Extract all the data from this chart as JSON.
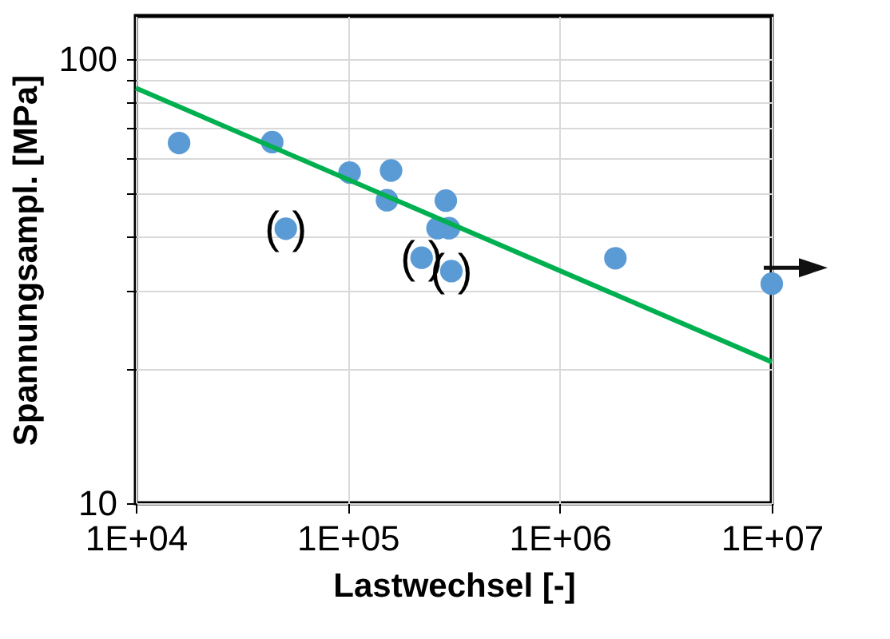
{
  "chart_data": {
    "type": "scatter",
    "xlabel": "Lastwechsel [-]",
    "ylabel": "Spannungsampl. [MPa]",
    "log": "xy",
    "grid": true,
    "xlim": [
      10000,
      10000000
    ],
    "xticks": [
      {
        "value": 10000,
        "label": "1E+04"
      },
      {
        "value": 100000,
        "label": "1E+05"
      },
      {
        "value": 1000000,
        "label": "1E+06"
      },
      {
        "value": 10000000,
        "label": "1E+07"
      }
    ],
    "ylim": [
      10,
      125
    ],
    "yticks": [
      10,
      {
        "value": 20,
        "label": null
      },
      {
        "value": 30,
        "label": null
      },
      {
        "value": 40,
        "label": null
      },
      {
        "value": 50,
        "label": null
      },
      {
        "value": 60,
        "label": null
      },
      {
        "value": 70,
        "label": null
      },
      {
        "value": 80,
        "label": null
      },
      {
        "value": 90,
        "label": null
      },
      100
    ],
    "series": [
      {
        "type": "scatter",
        "marker": "circle",
        "color": "#5b9bd5",
        "x": [
          16000,
          44000,
          102000,
          160000,
          153000,
          290000,
          265000,
          300000,
          51000,
          223000,
          308000,
          1830000,
          10000000
        ],
        "values": [
          64.7,
          65,
          55.5,
          56.1,
          48.1,
          48,
          41.6,
          41.6,
          41.5,
          35.7,
          33.3,
          35.6,
          31.2
        ]
      },
      {
        "type": "line",
        "color": "#00b050",
        "x": [
          10000,
          10000000
        ],
        "values": [
          86,
          20.8
        ]
      }
    ],
    "annotations": [
      {
        "text": "( )",
        "x": 51000,
        "y": 41.5
      },
      {
        "text": "( )",
        "x": 223000,
        "y": 35.7
      },
      {
        "text": "( )",
        "x": 308000,
        "y": 33.3
      }
    ]
  }
}
